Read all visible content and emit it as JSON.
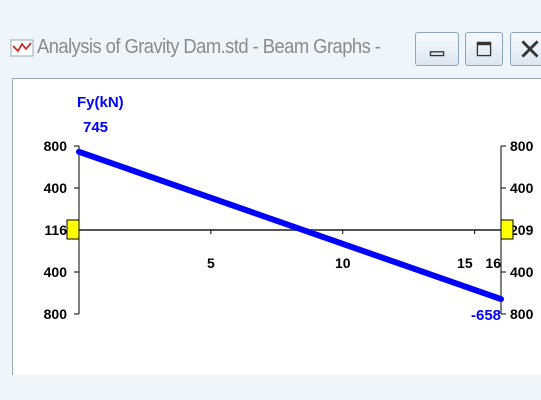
{
  "window": {
    "title": "Analysis of Gravity Dam.std - Beam Graphs - Beam...",
    "buttons": {
      "minimize": "minimize",
      "maximize": "maximize",
      "close": "close"
    }
  },
  "graph": {
    "quantity_label": "Fy(kN)",
    "start_value_label": "745",
    "end_value_label": "-658",
    "left_axis_ticks": [
      "800",
      "400",
      "116",
      "400",
      "800"
    ],
    "right_axis_ticks": [
      "800",
      "400",
      "209",
      "400",
      "800"
    ],
    "x_ticks": [
      "5",
      "10",
      "15",
      "16"
    ],
    "colors": {
      "diagram": "#0000ff",
      "axis": "#000000",
      "marker": "#ffff00",
      "label": "#0000ff"
    }
  },
  "chart_data": {
    "type": "line",
    "title": "",
    "xlabel": "",
    "ylabel": "Fy(kN)",
    "series": [
      {
        "name": "Fy(kN)",
        "x": [
          0,
          16
        ],
        "values": [
          745,
          -658
        ]
      }
    ],
    "xlim": [
      0,
      16
    ],
    "ylim": [
      -800,
      800
    ],
    "x_ticks": [
      5,
      10,
      15,
      16
    ],
    "grid": false
  }
}
